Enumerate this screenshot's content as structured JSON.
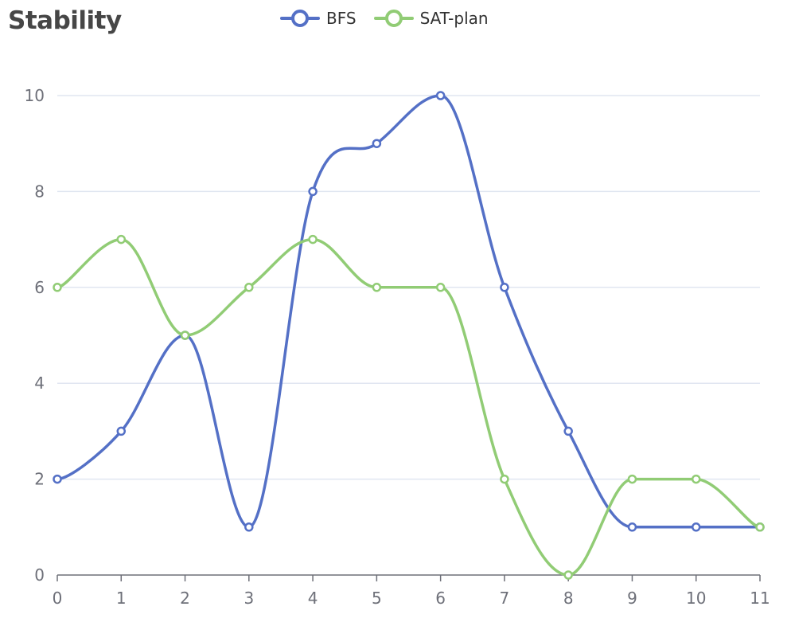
{
  "chart_data": {
    "type": "line",
    "title": "Stability",
    "xlabel": "",
    "ylabel": "",
    "categories": [
      "0",
      "1",
      "2",
      "3",
      "4",
      "5",
      "6",
      "7",
      "8",
      "9",
      "10",
      "11"
    ],
    "x": [
      0,
      1,
      2,
      3,
      4,
      5,
      6,
      7,
      8,
      9,
      10,
      11
    ],
    "ylim": [
      0,
      10
    ],
    "yticks": [
      0,
      2,
      4,
      6,
      8,
      10
    ],
    "smooth": true,
    "grid": true,
    "legend_position": "top-center",
    "series": [
      {
        "name": "BFS",
        "color": "#5470c6",
        "values": [
          2,
          3,
          5,
          1,
          8,
          9,
          10,
          6,
          3,
          1,
          1,
          1
        ]
      },
      {
        "name": "SAT-plan",
        "color": "#91cc75",
        "values": [
          6,
          7,
          5,
          6,
          7,
          6,
          6,
          2,
          0,
          2,
          2,
          1
        ]
      }
    ]
  }
}
